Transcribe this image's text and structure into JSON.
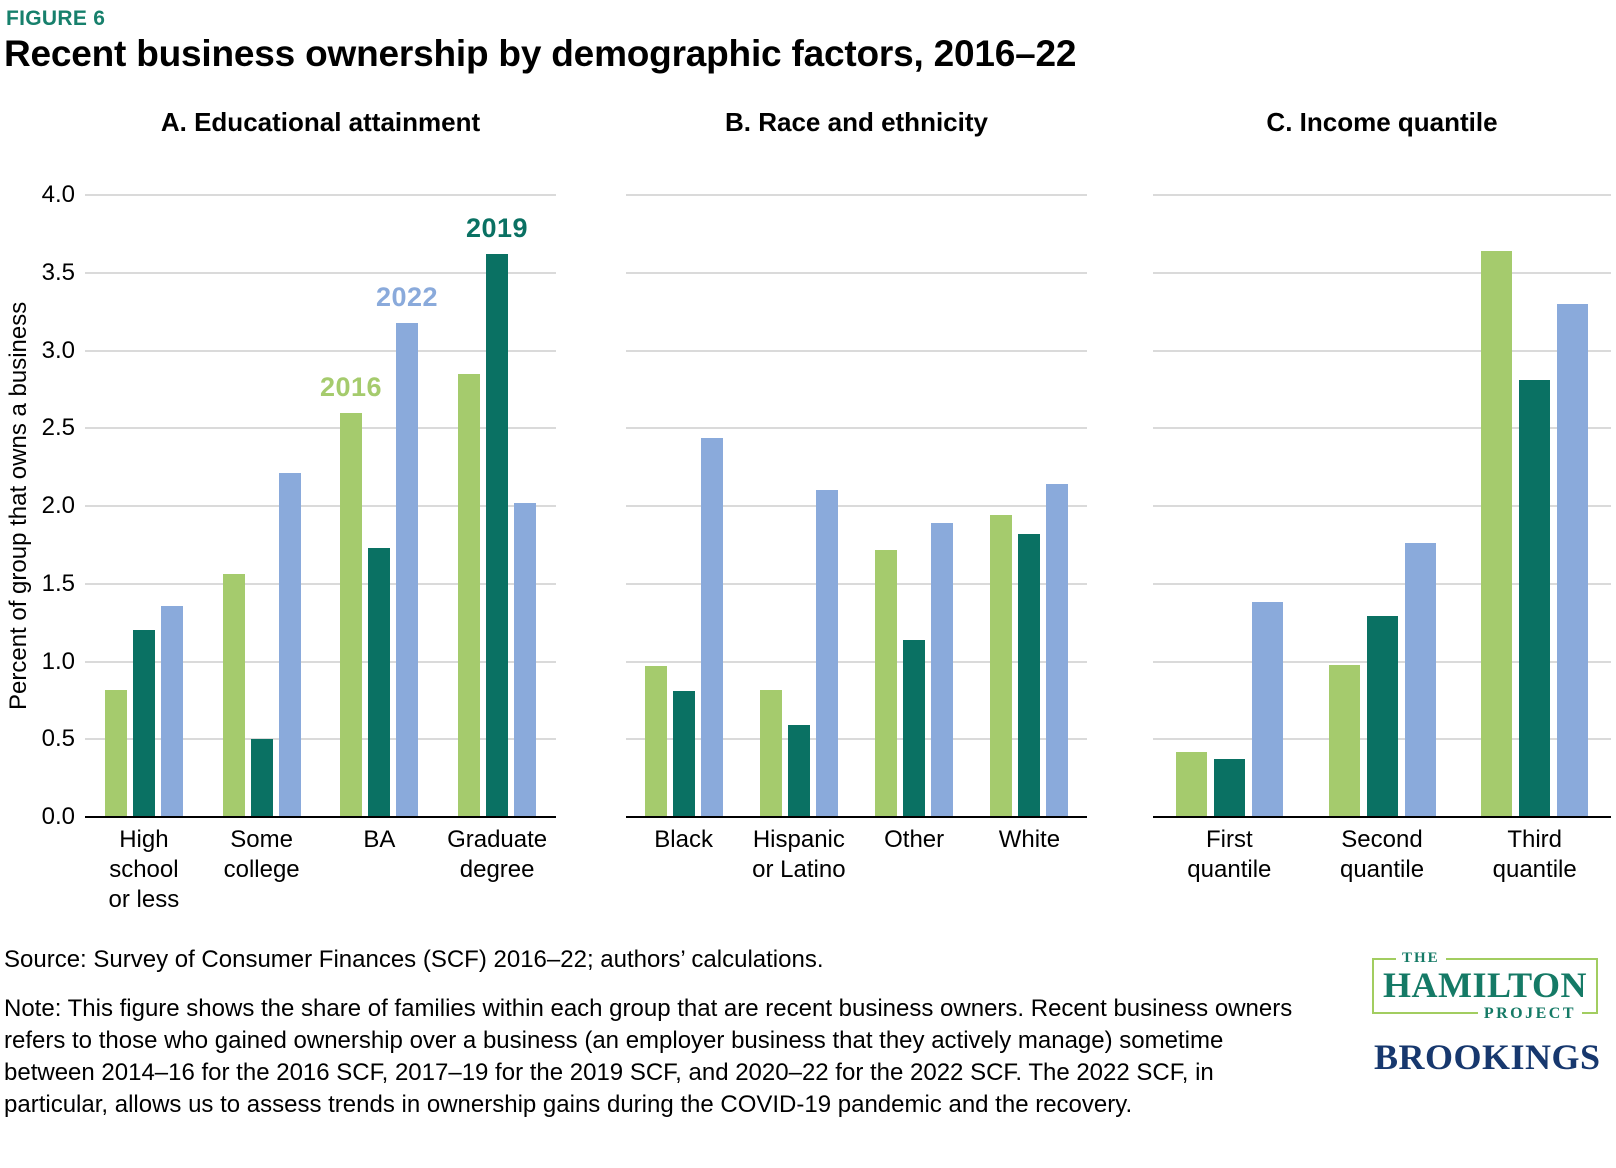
{
  "figure_label": "FIGURE 6",
  "title": "Recent business ownership by demographic factors, 2016–22",
  "ylabel": "Percent of group that owns a business",
  "source": "Source: Survey of Consumer Finances (SCF) 2016–22; authors’ calculations.",
  "note": "Note: This figure shows the share of families within each group that are recent business owners. Recent business owners refers to those who gained ownership over a business (an employer business that they actively manage) sometime between 2014–16 for the 2016 SCF, 2017–19 for the 2019 SCF, and 2020–22 for the 2022 SCF. The 2022 SCF, in particular, allows us to assess trends in ownership gains during the COVID-19 pandemic and the recovery.",
  "logos": {
    "hamilton_the": "THE",
    "hamilton": "HAMILTON",
    "hamilton_project": "PROJECT",
    "brookings": "BROOKINGS"
  },
  "chart_data": {
    "type": "bar",
    "unit": "percent",
    "ylim": [
      0,
      4.0
    ],
    "ytick_step": 0.5,
    "yticks": [
      "4.0",
      "3.5",
      "3.0",
      "2.5",
      "2.0",
      "1.5",
      "1.0",
      "0.5",
      "0.0"
    ],
    "grid": true,
    "legend": "inline-annotations",
    "series_names": [
      "2016",
      "2019",
      "2022"
    ],
    "series_colors": {
      "2016": "#a5cb6d",
      "2019": "#0a7163",
      "2022": "#8aaadb"
    },
    "panels": [
      {
        "title": "A. Educational attainment",
        "categories": [
          "High\nschool\nor less",
          "Some\ncollege",
          "BA",
          "Graduate\ndegree"
        ],
        "series": [
          {
            "name": "2016",
            "values": [
              0.82,
              1.56,
              2.6,
              2.85
            ]
          },
          {
            "name": "2019",
            "values": [
              1.2,
              0.5,
              1.73,
              3.62
            ]
          },
          {
            "name": "2022",
            "values": [
              1.36,
              2.21,
              3.18,
              2.02
            ]
          }
        ],
        "annotations": [
          {
            "text": "2016",
            "series": 0,
            "category": 2
          },
          {
            "text": "2022",
            "series": 2,
            "category": 2
          },
          {
            "text": "2019",
            "series": 1,
            "category": 3
          }
        ]
      },
      {
        "title": "B. Race and ethnicity",
        "categories": [
          "Black",
          "Hispanic\nor Latino",
          "Other",
          "White"
        ],
        "series": [
          {
            "name": "2016",
            "values": [
              0.97,
              0.82,
              1.72,
              1.94
            ]
          },
          {
            "name": "2019",
            "values": [
              0.81,
              0.59,
              1.14,
              1.82
            ]
          },
          {
            "name": "2022",
            "values": [
              2.44,
              2.1,
              1.89,
              2.14
            ]
          }
        ],
        "annotations": []
      },
      {
        "title": "C. Income quantile",
        "categories": [
          "First\nquantile",
          "Second\nquantile",
          "Third\nquantile"
        ],
        "series": [
          {
            "name": "2016",
            "values": [
              0.42,
              0.98,
              3.64
            ]
          },
          {
            "name": "2019",
            "values": [
              0.37,
              1.29,
              2.81
            ]
          },
          {
            "name": "2022",
            "values": [
              1.38,
              1.76,
              3.3
            ]
          }
        ],
        "annotations": []
      }
    ]
  }
}
